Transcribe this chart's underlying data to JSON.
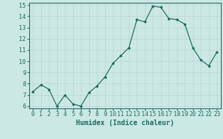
{
  "title": "",
  "x": [
    0,
    1,
    2,
    3,
    4,
    5,
    6,
    7,
    8,
    9,
    10,
    11,
    12,
    13,
    14,
    15,
    16,
    17,
    18,
    19,
    20,
    21,
    22,
    23
  ],
  "y": [
    7.3,
    7.9,
    7.5,
    6.0,
    7.0,
    6.2,
    6.0,
    7.2,
    7.8,
    8.6,
    9.8,
    10.5,
    11.2,
    13.7,
    13.5,
    14.9,
    14.8,
    13.8,
    13.7,
    13.3,
    11.2,
    10.1,
    9.6,
    10.8
  ],
  "xlabel": "Humidex (Indice chaleur)",
  "ylim_min": 6,
  "ylim_max": 15,
  "yticks": [
    6,
    7,
    8,
    9,
    10,
    11,
    12,
    13,
    14,
    15
  ],
  "xticks": [
    0,
    1,
    2,
    3,
    4,
    5,
    6,
    7,
    8,
    9,
    10,
    11,
    12,
    13,
    14,
    15,
    16,
    17,
    18,
    19,
    20,
    21,
    22,
    23
  ],
  "line_color": "#1a6b5e",
  "marker_color": "#1a6b5e",
  "bg_color": "#cce8e4",
  "grid_color": "#b8d4d0",
  "axis_color": "#1a6b5e",
  "label_color": "#1a6b5e",
  "tick_fontsize": 6,
  "xlabel_fontsize": 7
}
